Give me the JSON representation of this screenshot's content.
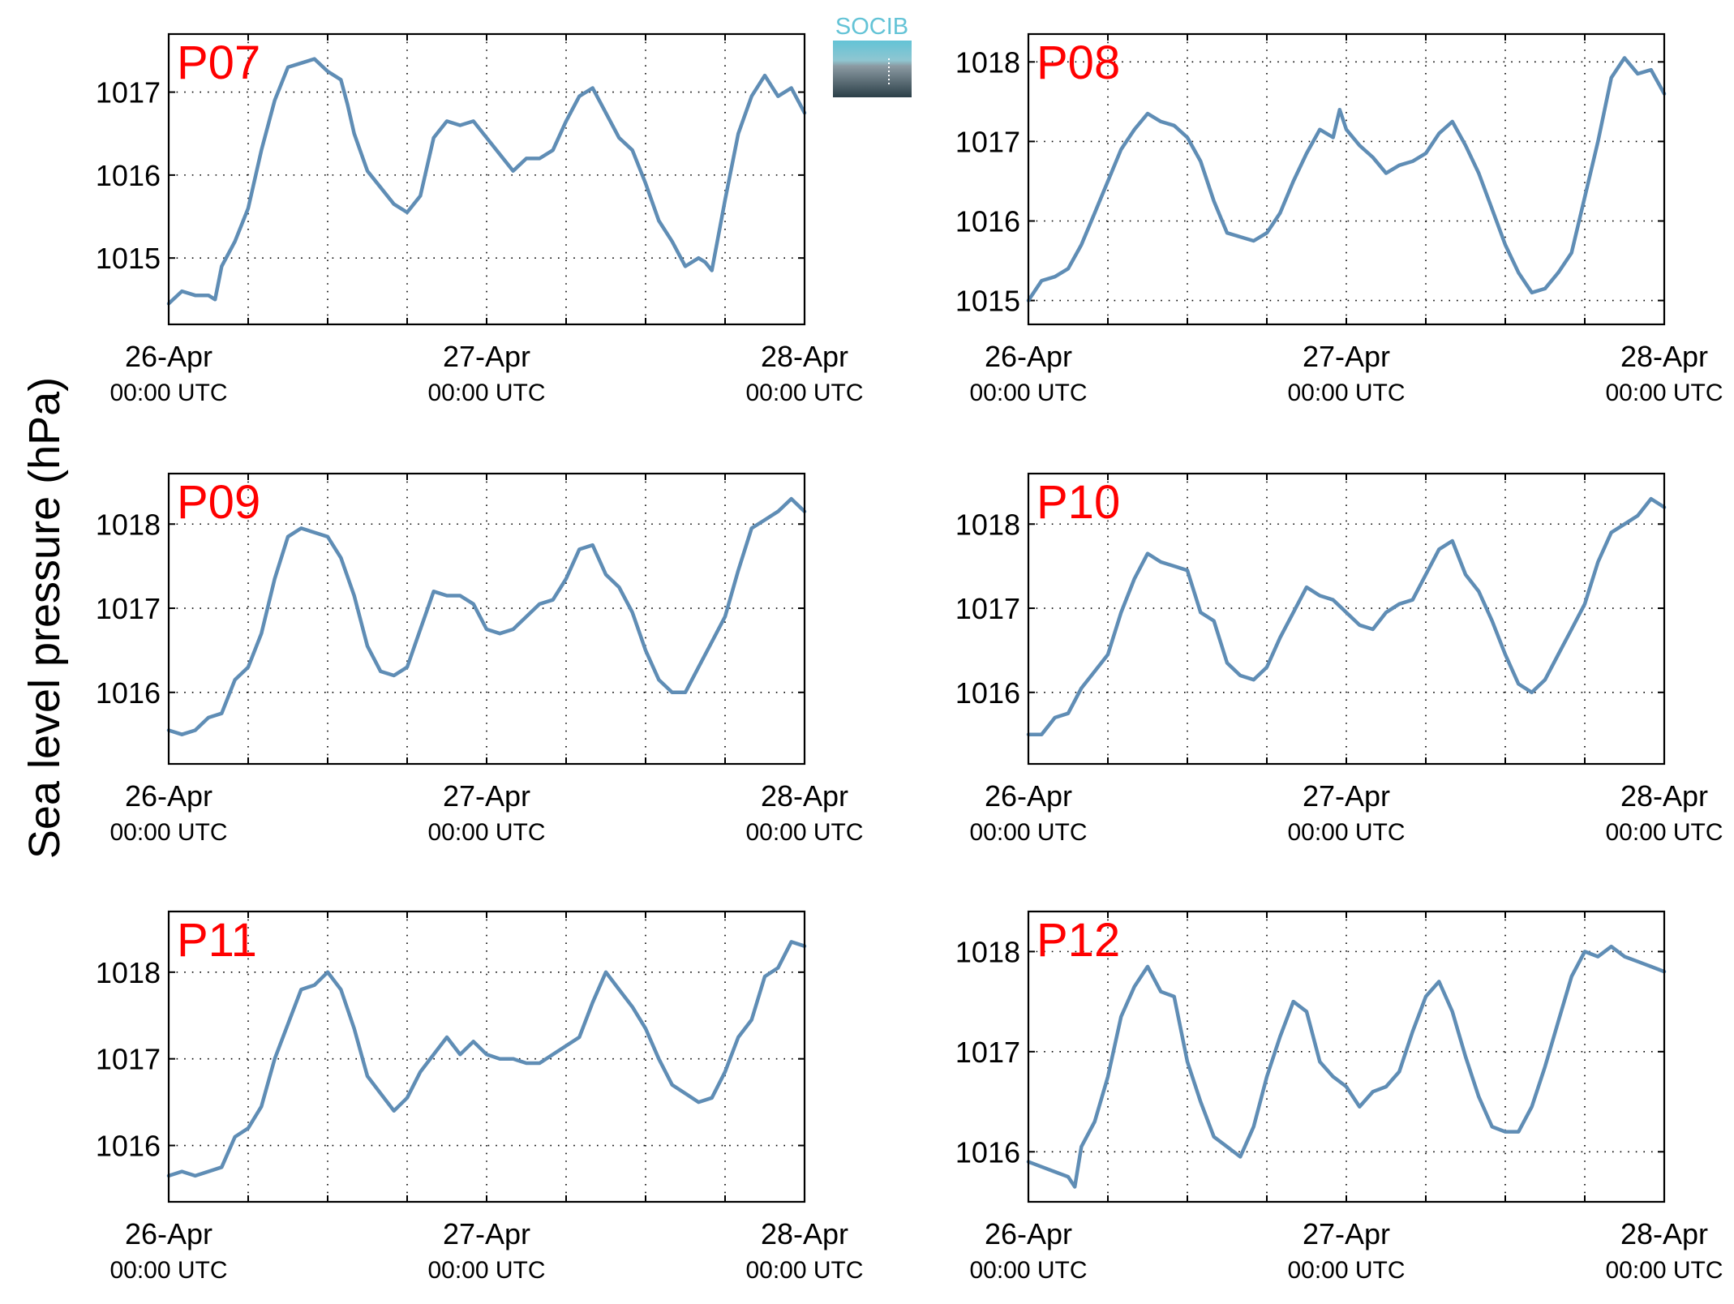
{
  "figure": {
    "ylabel": "Sea level pressure (hPa)",
    "logo_text": "SOCIB"
  },
  "colors": {
    "series": "#5f8db5",
    "panel_label": "#ff0000",
    "logo_top": "#63c3d6",
    "logo_bottom": "#2b3f48"
  },
  "chart_data": [
    {
      "type": "line",
      "panel_label": "P07",
      "title": "",
      "xlabel": "",
      "ylabel": "Sea level pressure (hPa)",
      "grid": true,
      "x_ticks": [
        {
          "date": "26-Apr",
          "time": "00:00 UTC"
        },
        {
          "date": "27-Apr",
          "time": "00:00 UTC"
        },
        {
          "date": "28-Apr",
          "time": "00:00 UTC"
        }
      ],
      "x_hours_range": [
        0,
        48
      ],
      "ylim": [
        1014.2,
        1017.7
      ],
      "yticks": [
        1015,
        1016,
        1017
      ],
      "series": [
        {
          "x_hours": [
            0,
            1,
            2,
            3,
            3.5,
            4,
            5,
            6,
            7,
            8,
            9,
            10,
            11,
            12,
            13,
            13.5,
            14,
            15,
            16,
            17,
            18,
            19,
            20,
            21,
            22,
            23,
            24,
            25,
            26,
            27,
            28,
            29,
            30,
            31,
            32,
            33,
            34,
            35,
            36,
            37,
            38,
            39,
            40,
            40.5,
            41,
            42,
            43,
            44,
            45,
            46,
            47,
            48
          ],
          "values": [
            1014.45,
            1014.6,
            1014.55,
            1014.55,
            1014.5,
            1014.9,
            1015.2,
            1015.6,
            1016.3,
            1016.9,
            1017.3,
            1017.35,
            1017.4,
            1017.25,
            1017.15,
            1016.85,
            1016.5,
            1016.05,
            1015.85,
            1015.65,
            1015.55,
            1015.75,
            1016.45,
            1016.65,
            1016.6,
            1016.65,
            1016.45,
            1016.25,
            1016.05,
            1016.2,
            1016.2,
            1016.3,
            1016.65,
            1016.95,
            1017.05,
            1016.75,
            1016.45,
            1016.3,
            1015.9,
            1015.45,
            1015.2,
            1014.9,
            1015.0,
            1014.95,
            1014.85,
            1015.7,
            1016.5,
            1016.95,
            1017.2,
            1016.95,
            1017.05,
            1016.75
          ]
        }
      ]
    },
    {
      "type": "line",
      "panel_label": "P08",
      "title": "",
      "xlabel": "",
      "ylabel": "Sea level pressure (hPa)",
      "grid": true,
      "x_ticks": [
        {
          "date": "26-Apr",
          "time": "00:00 UTC"
        },
        {
          "date": "27-Apr",
          "time": "00:00 UTC"
        },
        {
          "date": "28-Apr",
          "time": "00:00 UTC"
        }
      ],
      "x_hours_range": [
        0,
        48
      ],
      "ylim": [
        1014.7,
        1018.35
      ],
      "yticks": [
        1015,
        1016,
        1017,
        1018
      ],
      "series": [
        {
          "x_hours": [
            0,
            1,
            2,
            3,
            4,
            5,
            6,
            7,
            8,
            9,
            10,
            11,
            12,
            13,
            14,
            15,
            16,
            17,
            18,
            19,
            20,
            21,
            22,
            23,
            23.5,
            24,
            25,
            26,
            27,
            28,
            29,
            30,
            31,
            32,
            33,
            34,
            35,
            36,
            37,
            38,
            39,
            40,
            41,
            42,
            43,
            44,
            45,
            46,
            47,
            48
          ],
          "values": [
            1015.0,
            1015.25,
            1015.3,
            1015.4,
            1015.7,
            1016.1,
            1016.5,
            1016.9,
            1017.15,
            1017.35,
            1017.25,
            1017.2,
            1017.05,
            1016.75,
            1016.25,
            1015.85,
            1015.8,
            1015.75,
            1015.85,
            1016.1,
            1016.5,
            1016.85,
            1017.15,
            1017.05,
            1017.4,
            1017.15,
            1016.95,
            1016.8,
            1016.6,
            1016.7,
            1016.75,
            1016.85,
            1017.1,
            1017.25,
            1016.95,
            1016.6,
            1016.15,
            1015.7,
            1015.35,
            1015.1,
            1015.15,
            1015.35,
            1015.6,
            1016.3,
            1017.0,
            1017.8,
            1018.05,
            1017.85,
            1017.9,
            1017.6
          ]
        }
      ]
    },
    {
      "type": "line",
      "panel_label": "P09",
      "title": "",
      "xlabel": "",
      "ylabel": "Sea level pressure (hPa)",
      "grid": true,
      "x_ticks": [
        {
          "date": "26-Apr",
          "time": "00:00 UTC"
        },
        {
          "date": "27-Apr",
          "time": "00:00 UTC"
        },
        {
          "date": "28-Apr",
          "time": "00:00 UTC"
        }
      ],
      "x_hours_range": [
        0,
        48
      ],
      "ylim": [
        1015.15,
        1018.6
      ],
      "yticks": [
        1016,
        1017,
        1018
      ],
      "series": [
        {
          "x_hours": [
            0,
            1,
            2,
            3,
            4,
            5,
            6,
            7,
            8,
            9,
            10,
            11,
            12,
            13,
            14,
            15,
            16,
            17,
            18,
            19,
            20,
            21,
            22,
            23,
            24,
            25,
            26,
            27,
            28,
            29,
            30,
            31,
            32,
            33,
            34,
            35,
            36,
            37,
            38,
            39,
            40,
            41,
            42,
            43,
            44,
            45,
            46,
            47,
            48
          ],
          "values": [
            1015.55,
            1015.5,
            1015.55,
            1015.7,
            1015.75,
            1016.15,
            1016.3,
            1016.7,
            1017.35,
            1017.85,
            1017.95,
            1017.9,
            1017.85,
            1017.6,
            1017.15,
            1016.55,
            1016.25,
            1016.2,
            1016.3,
            1016.75,
            1017.2,
            1017.15,
            1017.15,
            1017.05,
            1016.75,
            1016.7,
            1016.75,
            1016.9,
            1017.05,
            1017.1,
            1017.35,
            1017.7,
            1017.75,
            1017.4,
            1017.25,
            1016.95,
            1016.5,
            1016.15,
            1016.0,
            1016.0,
            1016.3,
            1016.6,
            1016.9,
            1017.45,
            1017.95,
            1018.05,
            1018.15,
            1018.3,
            1018.15
          ]
        }
      ]
    },
    {
      "type": "line",
      "panel_label": "P10",
      "title": "",
      "xlabel": "",
      "ylabel": "Sea level pressure (hPa)",
      "grid": true,
      "x_ticks": [
        {
          "date": "26-Apr",
          "time": "00:00 UTC"
        },
        {
          "date": "27-Apr",
          "time": "00:00 UTC"
        },
        {
          "date": "28-Apr",
          "time": "00:00 UTC"
        }
      ],
      "x_hours_range": [
        0,
        48
      ],
      "ylim": [
        1015.15,
        1018.6
      ],
      "yticks": [
        1016,
        1017,
        1018
      ],
      "series": [
        {
          "x_hours": [
            0,
            1,
            2,
            3,
            4,
            5,
            6,
            7,
            8,
            9,
            10,
            11,
            12,
            13,
            14,
            15,
            16,
            17,
            18,
            19,
            20,
            21,
            22,
            23,
            24,
            25,
            26,
            27,
            28,
            29,
            30,
            31,
            32,
            33,
            34,
            35,
            36,
            37,
            38,
            39,
            40,
            41,
            42,
            43,
            44,
            45,
            46,
            47,
            48
          ],
          "values": [
            1015.5,
            1015.5,
            1015.7,
            1015.75,
            1016.05,
            1016.25,
            1016.45,
            1016.95,
            1017.35,
            1017.65,
            1017.55,
            1017.5,
            1017.45,
            1016.95,
            1016.85,
            1016.35,
            1016.2,
            1016.15,
            1016.3,
            1016.65,
            1016.95,
            1017.25,
            1017.15,
            1017.1,
            1016.95,
            1016.8,
            1016.75,
            1016.95,
            1017.05,
            1017.1,
            1017.4,
            1017.7,
            1017.8,
            1017.4,
            1017.2,
            1016.85,
            1016.45,
            1016.1,
            1016.0,
            1016.15,
            1016.45,
            1016.75,
            1017.05,
            1017.55,
            1017.9,
            1018.0,
            1018.1,
            1018.3,
            1018.2
          ]
        }
      ]
    },
    {
      "type": "line",
      "panel_label": "P11",
      "title": "",
      "xlabel": "",
      "ylabel": "Sea level pressure (hPa)",
      "grid": true,
      "x_ticks": [
        {
          "date": "26-Apr",
          "time": "00:00 UTC"
        },
        {
          "date": "27-Apr",
          "time": "00:00 UTC"
        },
        {
          "date": "28-Apr",
          "time": "00:00 UTC"
        }
      ],
      "x_hours_range": [
        0,
        48
      ],
      "ylim": [
        1015.35,
        1018.7
      ],
      "yticks": [
        1016,
        1017,
        1018
      ],
      "series": [
        {
          "x_hours": [
            0,
            1,
            2,
            3,
            4,
            5,
            6,
            7,
            8,
            9,
            10,
            11,
            12,
            13,
            14,
            15,
            16,
            17,
            18,
            19,
            20,
            21,
            22,
            23,
            24,
            25,
            26,
            27,
            28,
            29,
            30,
            31,
            32,
            33,
            34,
            35,
            36,
            37,
            38,
            39,
            40,
            41,
            42,
            43,
            44,
            45,
            46,
            47,
            48
          ],
          "values": [
            1015.65,
            1015.7,
            1015.65,
            1015.7,
            1015.75,
            1016.1,
            1016.2,
            1016.45,
            1017.0,
            1017.4,
            1017.8,
            1017.85,
            1018.0,
            1017.8,
            1017.35,
            1016.8,
            1016.6,
            1016.4,
            1016.55,
            1016.85,
            1017.05,
            1017.25,
            1017.05,
            1017.2,
            1017.05,
            1017.0,
            1017.0,
            1016.95,
            1016.95,
            1017.05,
            1017.15,
            1017.25,
            1017.65,
            1018.0,
            1017.8,
            1017.6,
            1017.35,
            1017.0,
            1016.7,
            1016.6,
            1016.5,
            1016.55,
            1016.85,
            1017.25,
            1017.45,
            1017.95,
            1018.05,
            1018.35,
            1018.3
          ]
        }
      ]
    },
    {
      "type": "line",
      "panel_label": "P12",
      "title": "",
      "xlabel": "",
      "ylabel": "Sea level pressure (hPa)",
      "grid": true,
      "x_ticks": [
        {
          "date": "26-Apr",
          "time": "00:00 UTC"
        },
        {
          "date": "27-Apr",
          "time": "00:00 UTC"
        },
        {
          "date": "28-Apr",
          "time": "00:00 UTC"
        }
      ],
      "x_hours_range": [
        0,
        48
      ],
      "ylim": [
        1015.5,
        1018.4
      ],
      "yticks": [
        1016,
        1017,
        1018
      ],
      "series": [
        {
          "x_hours": [
            0,
            1,
            2,
            3,
            3.5,
            4,
            5,
            6,
            7,
            8,
            9,
            10,
            11,
            12,
            13,
            14,
            15,
            16,
            17,
            18,
            19,
            20,
            21,
            22,
            23,
            24,
            25,
            26,
            27,
            28,
            29,
            30,
            31,
            32,
            33,
            34,
            35,
            36,
            37,
            38,
            39,
            40,
            41,
            42,
            43,
            44,
            45,
            46,
            47,
            48
          ],
          "values": [
            1015.9,
            1015.85,
            1015.8,
            1015.75,
            1015.65,
            1016.05,
            1016.3,
            1016.75,
            1017.35,
            1017.65,
            1017.85,
            1017.6,
            1017.55,
            1016.9,
            1016.5,
            1016.15,
            1016.05,
            1015.95,
            1016.25,
            1016.75,
            1017.15,
            1017.5,
            1017.4,
            1016.9,
            1016.75,
            1016.65,
            1016.45,
            1016.6,
            1016.65,
            1016.8,
            1017.2,
            1017.55,
            1017.7,
            1017.4,
            1016.95,
            1016.55,
            1016.25,
            1016.2,
            1016.2,
            1016.45,
            1016.85,
            1017.3,
            1017.75,
            1018.0,
            1017.95,
            1018.05,
            1017.95,
            1017.9,
            1017.85,
            1017.8
          ]
        }
      ]
    }
  ]
}
